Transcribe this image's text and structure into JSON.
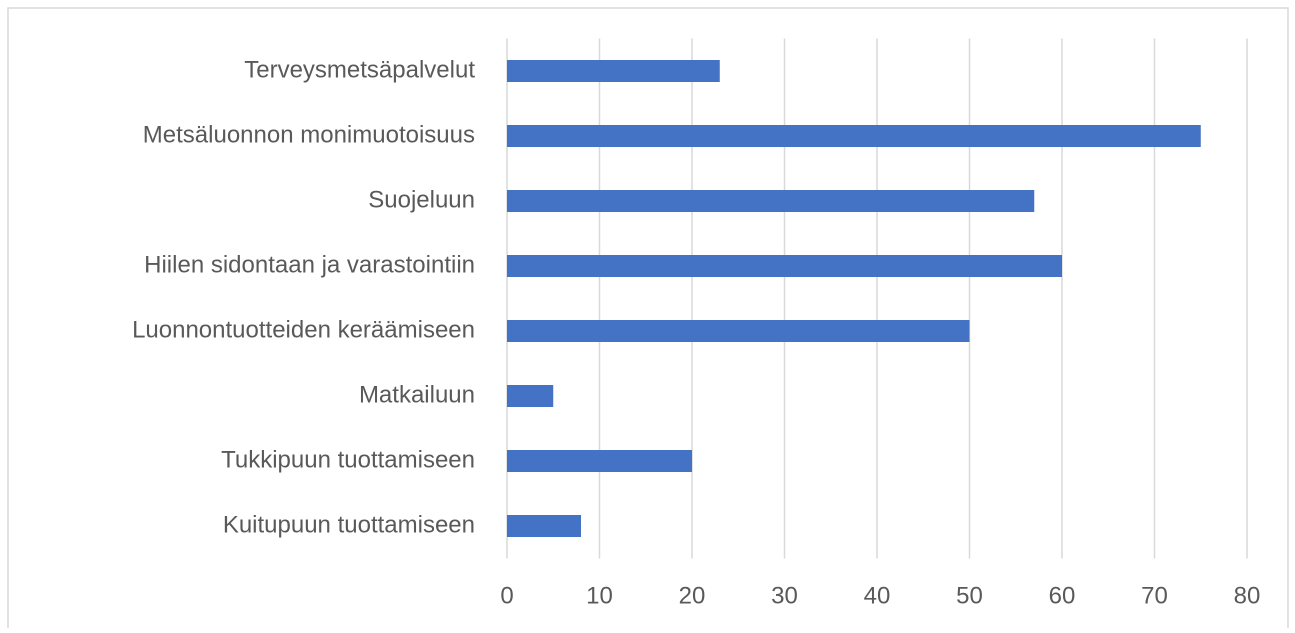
{
  "chart_data": {
    "type": "bar",
    "orientation": "horizontal",
    "categories": [
      "Terveysmetsäpalvelut",
      "Metsäluonnon monimuotoisuus",
      "Suojeluun",
      "Hiilen sidontaan ja varastointiin",
      "Luonnontuotteiden keräämiseen",
      "Matkailuun",
      "Tukkipuun tuottamiseen",
      "Kuitupuun tuottamiseen"
    ],
    "values": [
      23,
      75,
      57,
      60,
      50,
      5,
      20,
      8
    ],
    "color": "#4472c4",
    "xlim": [
      0,
      80
    ],
    "xticks": [
      0,
      10,
      20,
      30,
      40,
      50,
      60,
      70,
      80
    ],
    "grid": true
  }
}
